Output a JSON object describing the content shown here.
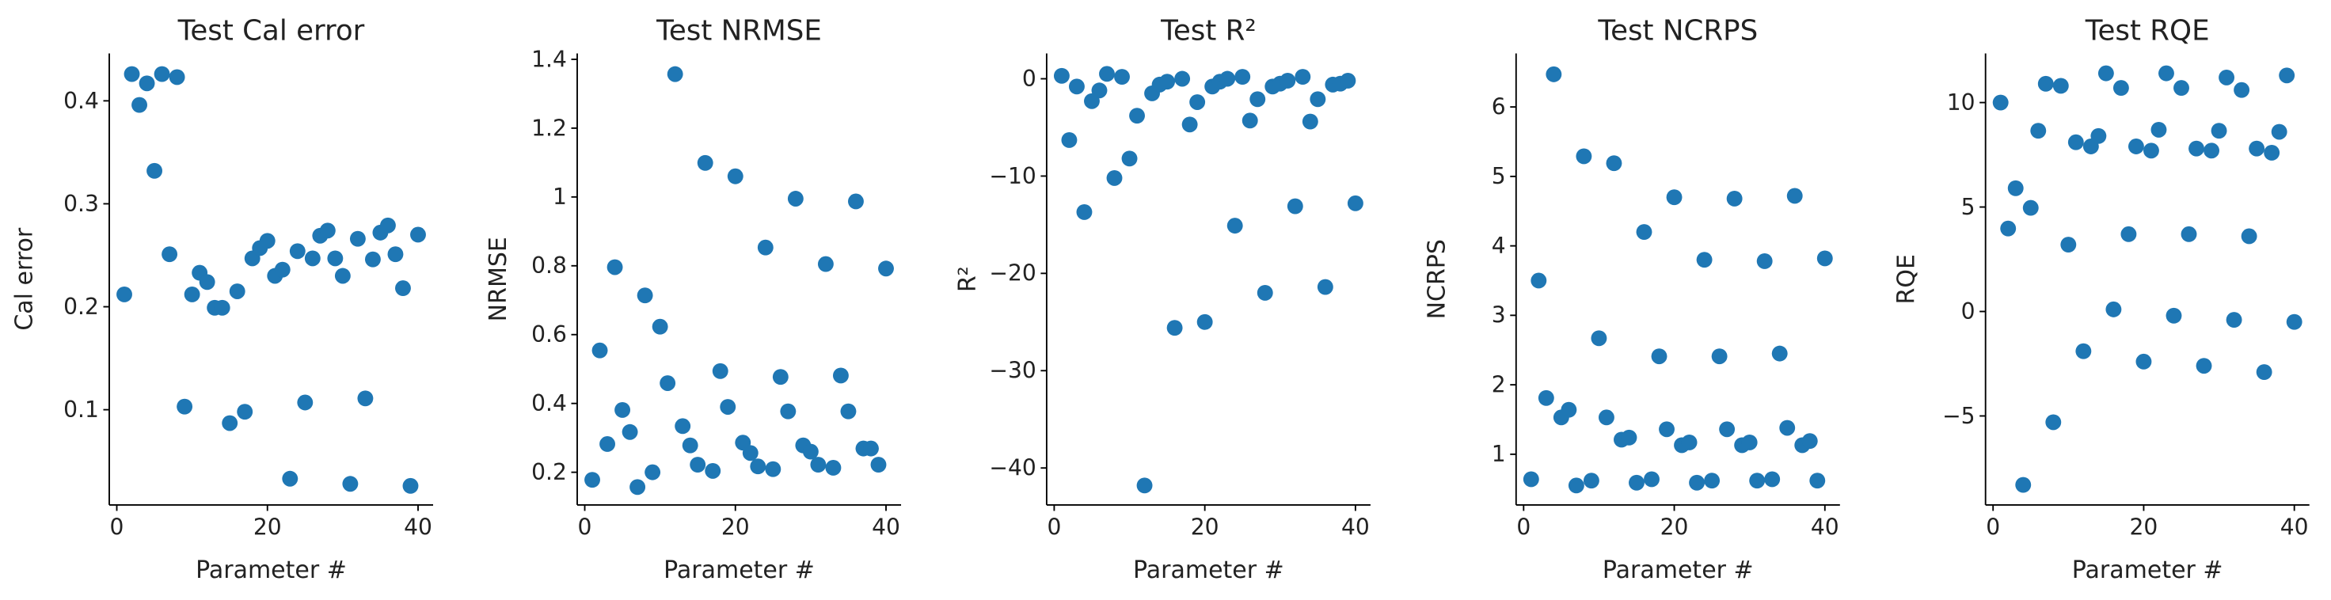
{
  "chart_data": [
    {
      "type": "scatter",
      "title": "Test Cal error",
      "x_label": "Parameter #",
      "y_label": "Cal error",
      "color": "#1f77b4",
      "x": [
        1,
        2,
        3,
        4,
        5,
        6,
        7,
        8,
        9,
        10,
        11,
        12,
        13,
        14,
        15,
        16,
        17,
        18,
        19,
        20,
        21,
        22,
        23,
        24,
        25,
        26,
        27,
        28,
        29,
        30,
        31,
        32,
        33,
        34,
        35,
        36,
        37,
        38,
        39,
        40
      ],
      "values": [
        0.212,
        0.426,
        0.396,
        0.417,
        0.332,
        0.426,
        0.251,
        0.423,
        0.103,
        0.212,
        0.233,
        0.224,
        0.199,
        0.199,
        0.087,
        0.215,
        0.098,
        0.247,
        0.257,
        0.264,
        0.23,
        0.236,
        0.033,
        0.254,
        0.107,
        0.247,
        0.269,
        0.274,
        0.247,
        0.23,
        0.028,
        0.266,
        0.111,
        0.246,
        0.272,
        0.279,
        0.251,
        0.218,
        0.026,
        0.27
      ],
      "xlim": [
        -1,
        42
      ],
      "ylim": [
        0.0075,
        0.446
      ],
      "xticks": [
        0,
        20,
        40
      ],
      "yticks": [
        0.1,
        0.2,
        0.3,
        0.4
      ]
    },
    {
      "type": "scatter",
      "title": "Test NRMSE",
      "x_label": "Parameter #",
      "y_label": "NRMSE",
      "color": "#1f77b4",
      "x": [
        1,
        2,
        3,
        4,
        5,
        6,
        7,
        8,
        9,
        10,
        11,
        12,
        13,
        14,
        15,
        16,
        17,
        18,
        19,
        20,
        21,
        22,
        23,
        24,
        25,
        26,
        27,
        28,
        29,
        30,
        31,
        32,
        33,
        34,
        35,
        36,
        37,
        38,
        39,
        40
      ],
      "values": [
        0.178,
        0.554,
        0.282,
        0.796,
        0.381,
        0.317,
        0.157,
        0.714,
        0.2,
        0.623,
        0.459,
        1.357,
        0.334,
        0.278,
        0.222,
        1.099,
        0.204,
        0.494,
        0.39,
        1.06,
        0.286,
        0.256,
        0.217,
        0.853,
        0.209,
        0.477,
        0.377,
        0.995,
        0.278,
        0.26,
        0.222,
        0.805,
        0.213,
        0.481,
        0.377,
        0.987,
        0.269,
        0.269,
        0.222,
        0.792
      ],
      "xlim": [
        -1,
        42
      ],
      "ylim": [
        0.105,
        1.417
      ],
      "xticks": [
        0,
        20,
        40
      ],
      "yticks": [
        0.2,
        0.4,
        0.6,
        0.8,
        1.0,
        1.2,
        1.4
      ]
    },
    {
      "type": "scatter",
      "title": "Test R²",
      "x_label": "Parameter #",
      "y_label": "R²",
      "color": "#1f77b4",
      "x": [
        1,
        2,
        3,
        4,
        5,
        6,
        7,
        8,
        9,
        10,
        11,
        12,
        13,
        14,
        15,
        16,
        17,
        18,
        19,
        20,
        21,
        22,
        23,
        24,
        25,
        26,
        27,
        28,
        29,
        30,
        31,
        32,
        33,
        34,
        35,
        36,
        37,
        38,
        39,
        40
      ],
      "values": [
        0.3,
        -6.3,
        -0.8,
        -13.7,
        -2.3,
        -1.2,
        0.5,
        -10.2,
        0.2,
        -8.2,
        -3.8,
        -41.8,
        -1.5,
        -0.6,
        -0.3,
        -25.6,
        0,
        -4.7,
        -2.4,
        -25,
        -0.8,
        -0.3,
        0,
        -15.1,
        0.2,
        -4.3,
        -2.1,
        -22,
        -0.8,
        -0.5,
        -0.2,
        -13.1,
        0.2,
        -4.4,
        -2.1,
        -21.4,
        -0.6,
        -0.5,
        -0.2,
        -12.8
      ],
      "xlim": [
        -1,
        42
      ],
      "ylim": [
        -43.8,
        2.6
      ],
      "xticks": [
        0,
        20,
        40
      ],
      "yticks": [
        {
          "value": -40,
          "label": "−40"
        },
        {
          "value": -30,
          "label": "−30"
        },
        {
          "value": -20,
          "label": "−20"
        },
        {
          "value": -10,
          "label": "−10"
        },
        0
      ]
    },
    {
      "type": "scatter",
      "title": "Test NCRPS",
      "x_label": "Parameter #",
      "y_label": "NCRPS",
      "color": "#1f77b4",
      "x": [
        1,
        2,
        3,
        4,
        5,
        6,
        7,
        8,
        9,
        10,
        11,
        12,
        13,
        14,
        15,
        16,
        17,
        18,
        19,
        20,
        21,
        22,
        23,
        24,
        25,
        26,
        27,
        28,
        29,
        30,
        31,
        32,
        33,
        34,
        35,
        36,
        37,
        38,
        39,
        40
      ],
      "values": [
        0.64,
        3.5,
        1.81,
        6.47,
        1.53,
        1.64,
        0.55,
        5.29,
        0.62,
        2.67,
        1.53,
        5.19,
        1.21,
        1.24,
        0.59,
        4.2,
        0.64,
        2.41,
        1.36,
        4.7,
        1.13,
        1.17,
        0.59,
        3.8,
        0.62,
        2.41,
        1.36,
        4.68,
        1.13,
        1.17,
        0.62,
        3.78,
        0.64,
        2.45,
        1.38,
        4.72,
        1.13,
        1.19,
        0.62,
        3.82
      ],
      "xlim": [
        -1,
        42
      ],
      "ylim": [
        0.27,
        6.77
      ],
      "xticks": [
        0,
        20,
        40
      ],
      "yticks": [
        1,
        2,
        3,
        4,
        5,
        6
      ]
    },
    {
      "type": "scatter",
      "title": "Test RQE",
      "x_label": "Parameter #",
      "y_label": "RQE",
      "color": "#1f77b4",
      "x": [
        1,
        2,
        3,
        4,
        5,
        6,
        7,
        8,
        9,
        10,
        11,
        12,
        13,
        14,
        15,
        16,
        17,
        18,
        19,
        20,
        21,
        22,
        23,
        24,
        25,
        26,
        27,
        28,
        29,
        30,
        31,
        32,
        33,
        34,
        35,
        36,
        37,
        38,
        39,
        40
      ],
      "values": [
        10,
        3.97,
        5.9,
        -8.3,
        4.96,
        8.65,
        10.9,
        -5.3,
        10.8,
        3.2,
        8.1,
        -1.9,
        7.9,
        8.4,
        11.4,
        0.1,
        10.7,
        3.7,
        7.9,
        -2.4,
        7.7,
        8.7,
        11.4,
        -0.2,
        10.7,
        3.7,
        7.8,
        -2.6,
        7.7,
        8.65,
        11.2,
        -0.4,
        10.6,
        3.6,
        7.8,
        -2.9,
        7.6,
        8.6,
        11.3,
        -0.5
      ],
      "xlim": [
        -1,
        42
      ],
      "ylim": [
        -9.26,
        12.35
      ],
      "xticks": [
        0,
        20,
        40
      ],
      "yticks": [
        {
          "value": -5,
          "label": "−5"
        },
        0,
        5,
        10
      ]
    }
  ]
}
